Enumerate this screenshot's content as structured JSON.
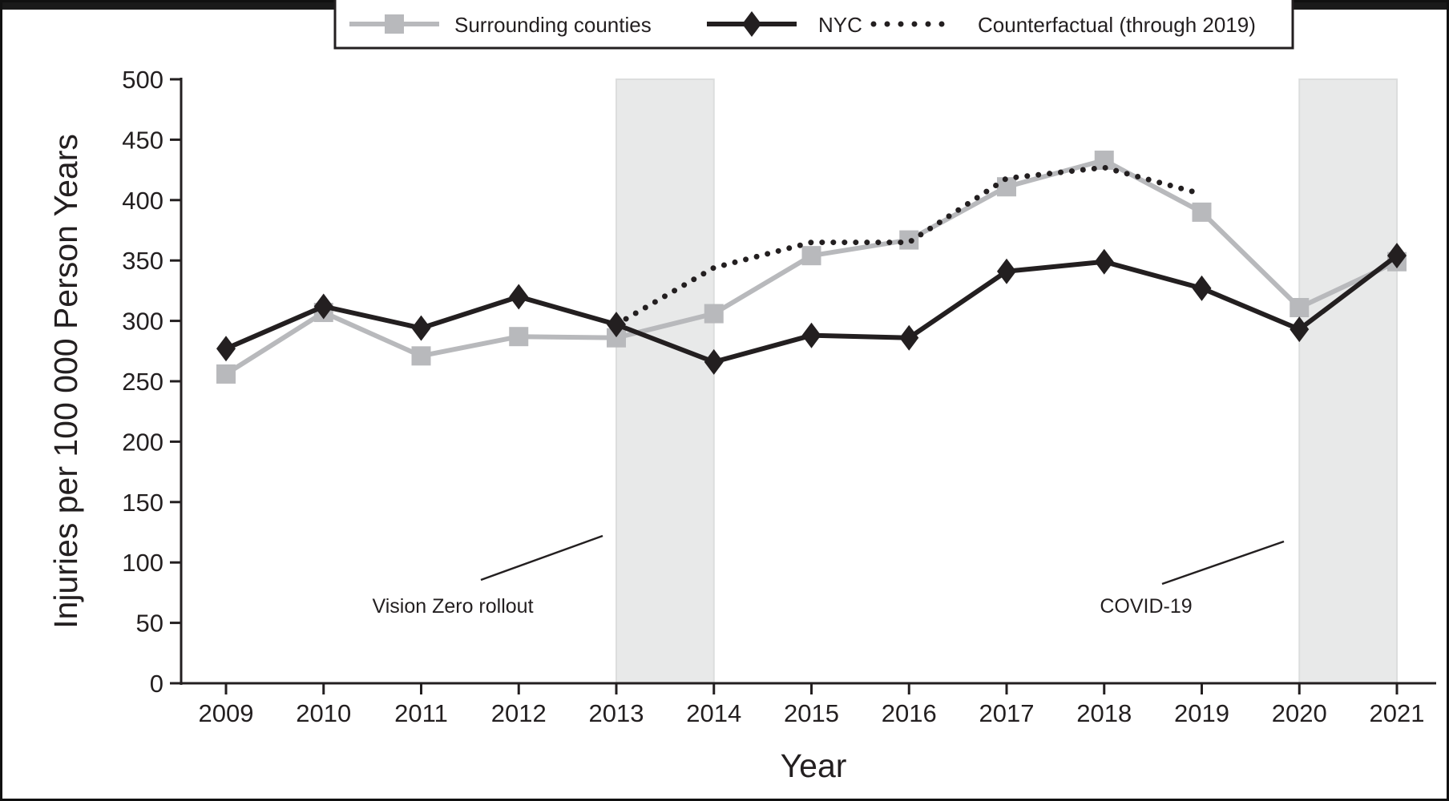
{
  "chart_data": {
    "type": "line",
    "xlabel": "Year",
    "ylabel": "Injuries per 100 000 Person Years",
    "ylim": [
      0,
      500
    ],
    "yticks": [
      0,
      50,
      100,
      150,
      200,
      250,
      300,
      350,
      400,
      450,
      500
    ],
    "categories": [
      "2009",
      "2010",
      "2011",
      "2012",
      "2013",
      "2014",
      "2015",
      "2016",
      "2017",
      "2018",
      "2019",
      "2020",
      "2021"
    ],
    "legend_position": "top",
    "grid": false,
    "series": [
      {
        "name": "Surrounding counties",
        "color": "#b8b9bc",
        "marker": "square",
        "values": [
          256,
          307,
          271,
          287,
          286,
          306,
          354,
          367,
          411,
          433,
          390,
          311,
          349
        ]
      },
      {
        "name": "NYC",
        "color": "#231f20",
        "marker": "diamond",
        "values": [
          277,
          312,
          294,
          320,
          297,
          266,
          288,
          286,
          341,
          349,
          327,
          293,
          354
        ]
      },
      {
        "name": "Counterfactual (through 2019)",
        "color": "#231f20",
        "style": "dotted",
        "values": [
          null,
          null,
          null,
          null,
          297,
          344,
          365,
          365,
          418,
          427,
          405,
          null,
          null
        ]
      }
    ],
    "shaded_periods": [
      {
        "from": "2013",
        "to": "2014",
        "label": "Vision Zero rollout"
      },
      {
        "from": "2020",
        "to": "2021",
        "label": "COVID-19"
      }
    ],
    "shade_color": "#e8e9e9"
  }
}
